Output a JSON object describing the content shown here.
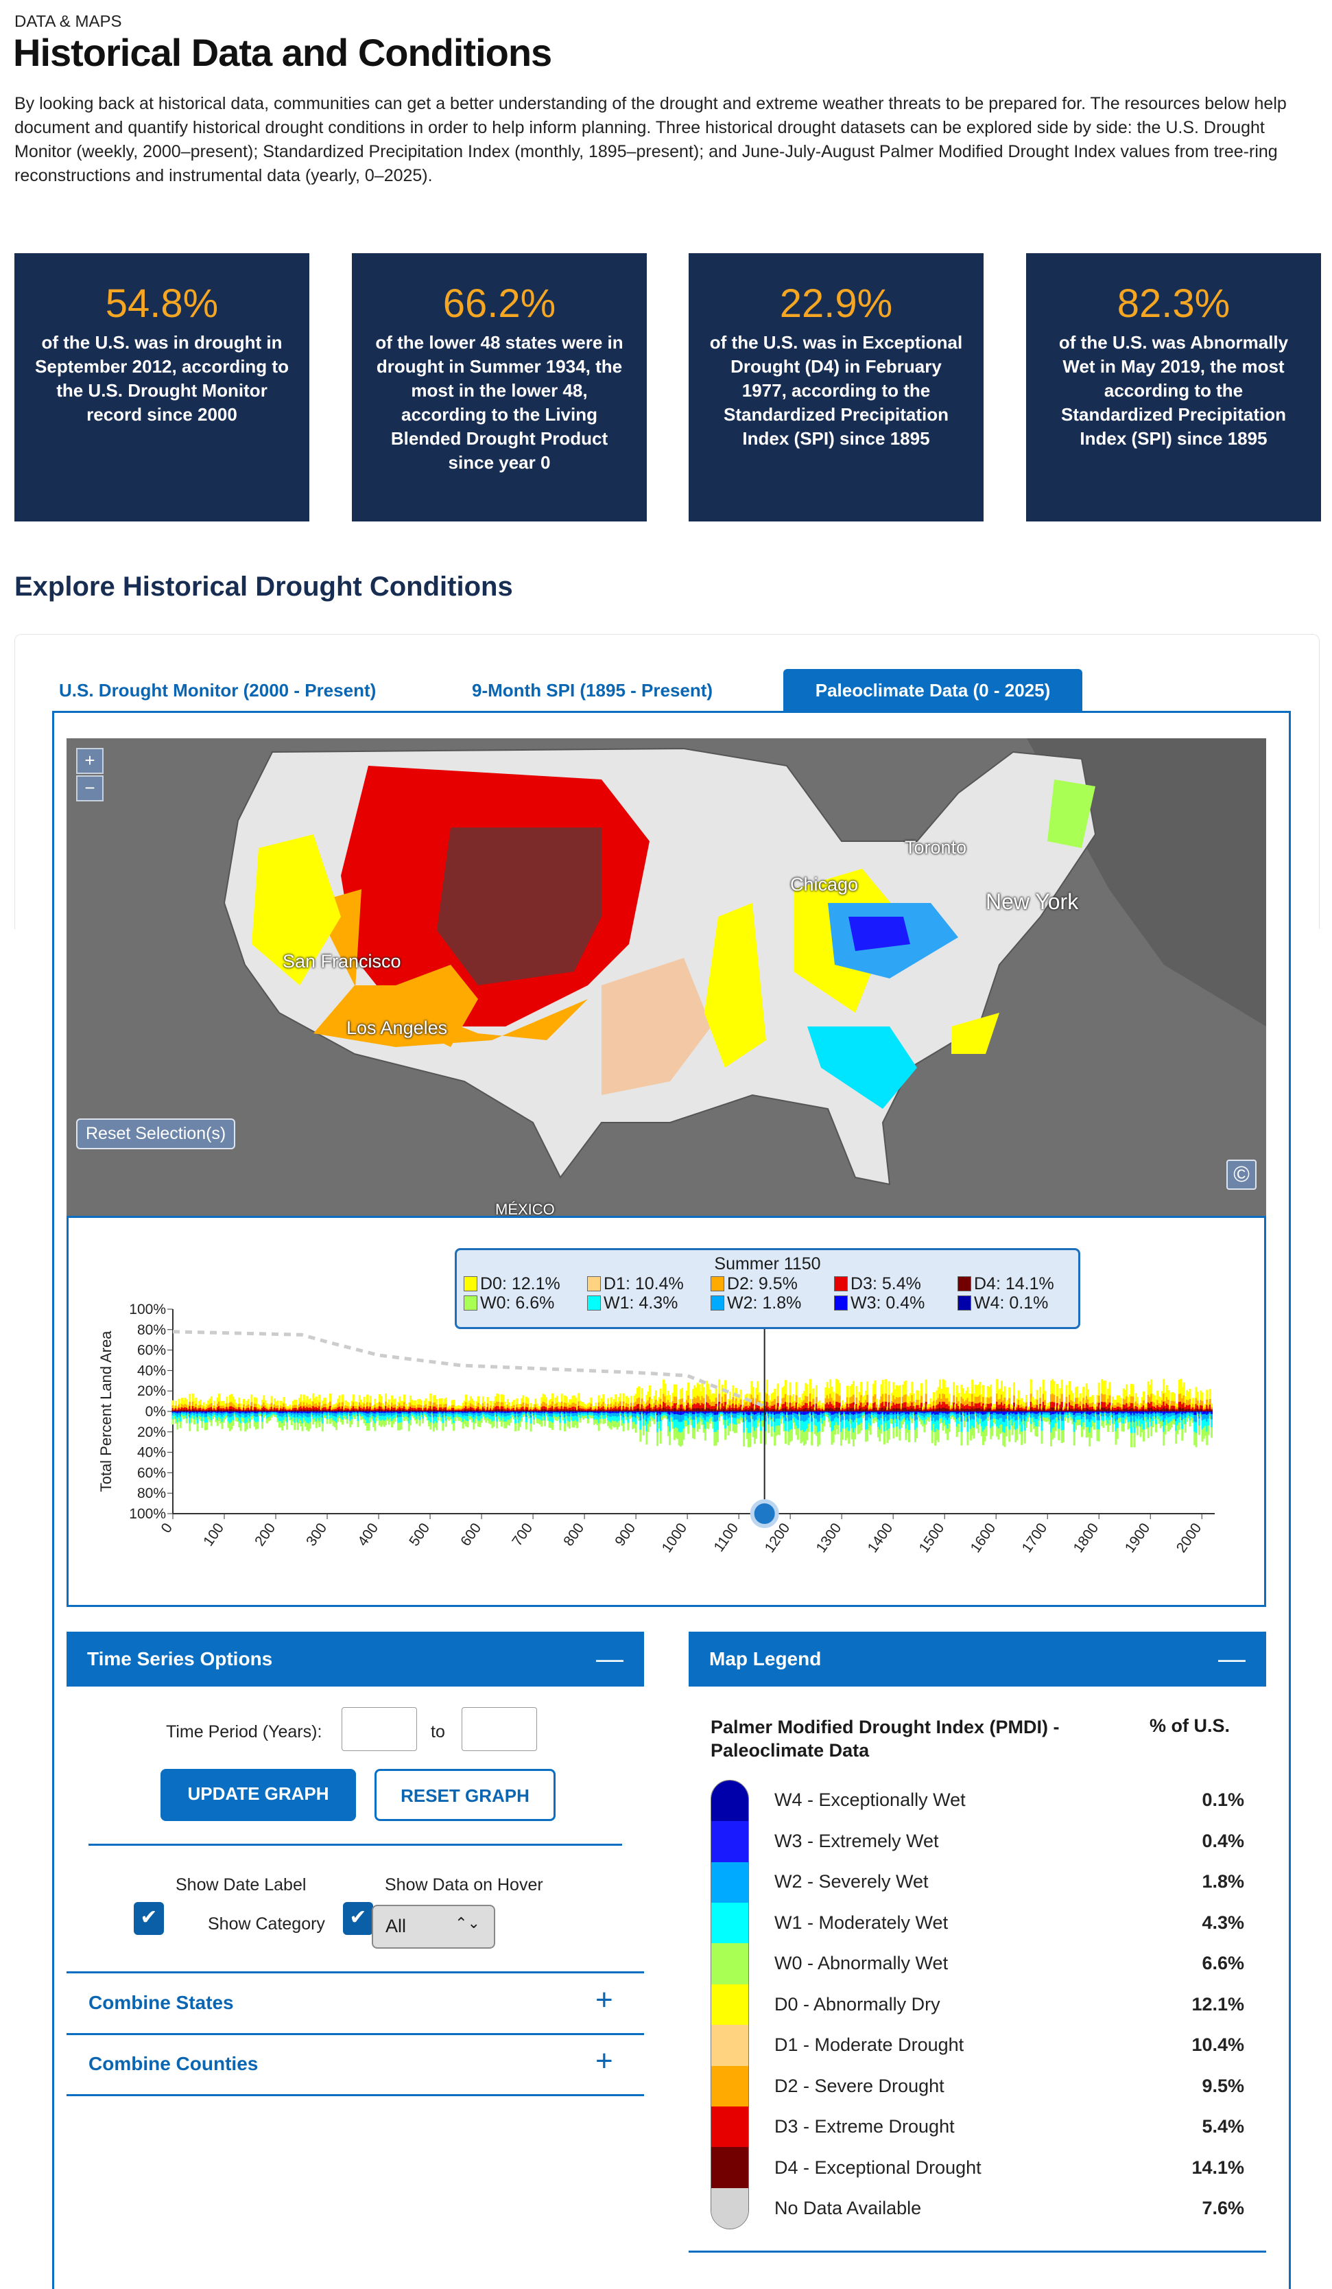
{
  "header": {
    "eyebrow": "DATA & MAPS",
    "title": "Historical Data and Conditions",
    "intro": "By looking back at historical data, communities can get a better understanding of the drought and extreme weather threats to be prepared for. The resources below help document and quantify historical drought conditions in order to help inform planning. Three historical drought datasets can be explored side by side: the U.S. Drought Monitor (weekly, 2000–present); Standardized Precipitation Index (monthly, 1895–present); and June-July-August Palmer Modified Drought Index values from tree-ring reconstructions and instrumental data (yearly, 0–2025)."
  },
  "stats": [
    {
      "pct": "54.8%",
      "text": "of the U.S. was in drought in September 2012, according to the U.S. Drought Monitor record since 2000"
    },
    {
      "pct": "66.2%",
      "text": "of the lower 48 states were in drought in Summer 1934, the most in the lower 48, according to the Living Blended Drought Product since year 0"
    },
    {
      "pct": "22.9%",
      "text": "of the U.S. was in Exceptional Drought (D4) in February 1977, according to the Standardized Precipitation Index (SPI) since 1895"
    },
    {
      "pct": "82.3%",
      "text": "of the U.S. was Abnormally Wet in May 2019, the most according to the Standardized Precipitation Index (SPI) since 1895"
    }
  ],
  "explore": {
    "title": "Explore Historical Drought Conditions",
    "tabs": [
      "U.S. Drought Monitor (2000 - Present)",
      "9-Month SPI (1895 - Present)",
      "Paleoclimate Data (0 - 2025)"
    ],
    "active_tab": 2
  },
  "map": {
    "zoom_in": "+",
    "zoom_out": "−",
    "reset": "Reset Selection(s)",
    "copyright": "©",
    "cities": [
      "San Francisco",
      "Los Angeles",
      "Chicago",
      "Toronto",
      "New York",
      "MÉXICO"
    ]
  },
  "chart_data": {
    "type": "area",
    "ylabel": "Total Percent Land Area",
    "xlabel": "",
    "xlim": [
      0,
      2025
    ],
    "ylim": [
      -100,
      100
    ],
    "yticks": [
      "100%",
      "80%",
      "60%",
      "40%",
      "20%",
      "0%",
      "20%",
      "40%",
      "60%",
      "80%",
      "100%"
    ],
    "xticks": [
      "0",
      "100",
      "200",
      "300",
      "400",
      "500",
      "600",
      "700",
      "800",
      "900",
      "1000",
      "1100",
      "1200",
      "1300",
      "1400",
      "1500",
      "1600",
      "1700",
      "1800",
      "1900",
      "2000"
    ],
    "selected_year": 1150,
    "tooltip": {
      "title": "Summer 1150",
      "items": [
        {
          "label": "D0",
          "value": "12.1%",
          "color": "#ffff00"
        },
        {
          "label": "D1",
          "value": "10.4%",
          "color": "#ffd37f"
        },
        {
          "label": "D2",
          "value": "9.5%",
          "color": "#ffaa00"
        },
        {
          "label": "D3",
          "value": "5.4%",
          "color": "#e60000"
        },
        {
          "label": "D4",
          "value": "14.1%",
          "color": "#730000"
        },
        {
          "label": "W0",
          "value": "6.6%",
          "color": "#aaff55"
        },
        {
          "label": "W1",
          "value": "4.3%",
          "color": "#01ffff"
        },
        {
          "label": "W2",
          "value": "1.8%",
          "color": "#00aaff"
        },
        {
          "label": "W3",
          "value": "0.4%",
          "color": "#0000ff"
        },
        {
          "label": "W4",
          "value": "0.1%",
          "color": "#0000aa"
        }
      ]
    }
  },
  "time_series": {
    "title": "Time Series Options",
    "period_label": "Time Period (Years):",
    "from": "",
    "to_label": "to",
    "to": "",
    "update": "UPDATE GRAPH",
    "reset": "RESET GRAPH",
    "show_date": "Show Date Label",
    "show_hover": "Show Data on Hover",
    "show_category": "Show Category",
    "category_value": "All",
    "combine_states": "Combine States",
    "combine_counties": "Combine Counties"
  },
  "legend": {
    "title": "Map Legend",
    "heading": "Palmer Modified Drought Index (PMDI) - Paleoclimate Data",
    "pct_heading": "% of U.S.",
    "items": [
      {
        "label": "W4 - Exceptionally Wet",
        "value": "0.1%",
        "color": "#0000aa"
      },
      {
        "label": "W3 - Extremely Wet",
        "value": "0.4%",
        "color": "#1a1aff"
      },
      {
        "label": "W2 - Severely Wet",
        "value": "1.8%",
        "color": "#00aaff"
      },
      {
        "label": "W1 - Moderately Wet",
        "value": "4.3%",
        "color": "#01ffff"
      },
      {
        "label": "W0 - Abnormally Wet",
        "value": "6.6%",
        "color": "#aaff55"
      },
      {
        "label": "D0 - Abnormally Dry",
        "value": "12.1%",
        "color": "#ffff00"
      },
      {
        "label": "D1 - Moderate Drought",
        "value": "10.4%",
        "color": "#ffd37f"
      },
      {
        "label": "D2 - Severe Drought",
        "value": "9.5%",
        "color": "#ffaa00"
      },
      {
        "label": "D3 - Extreme Drought",
        "value": "5.4%",
        "color": "#e60000"
      },
      {
        "label": "D4 - Exceptional Drought",
        "value": "14.1%",
        "color": "#730000"
      },
      {
        "label": "No Data Available",
        "value": "7.6%",
        "color": "#d3d3d3"
      }
    ]
  }
}
